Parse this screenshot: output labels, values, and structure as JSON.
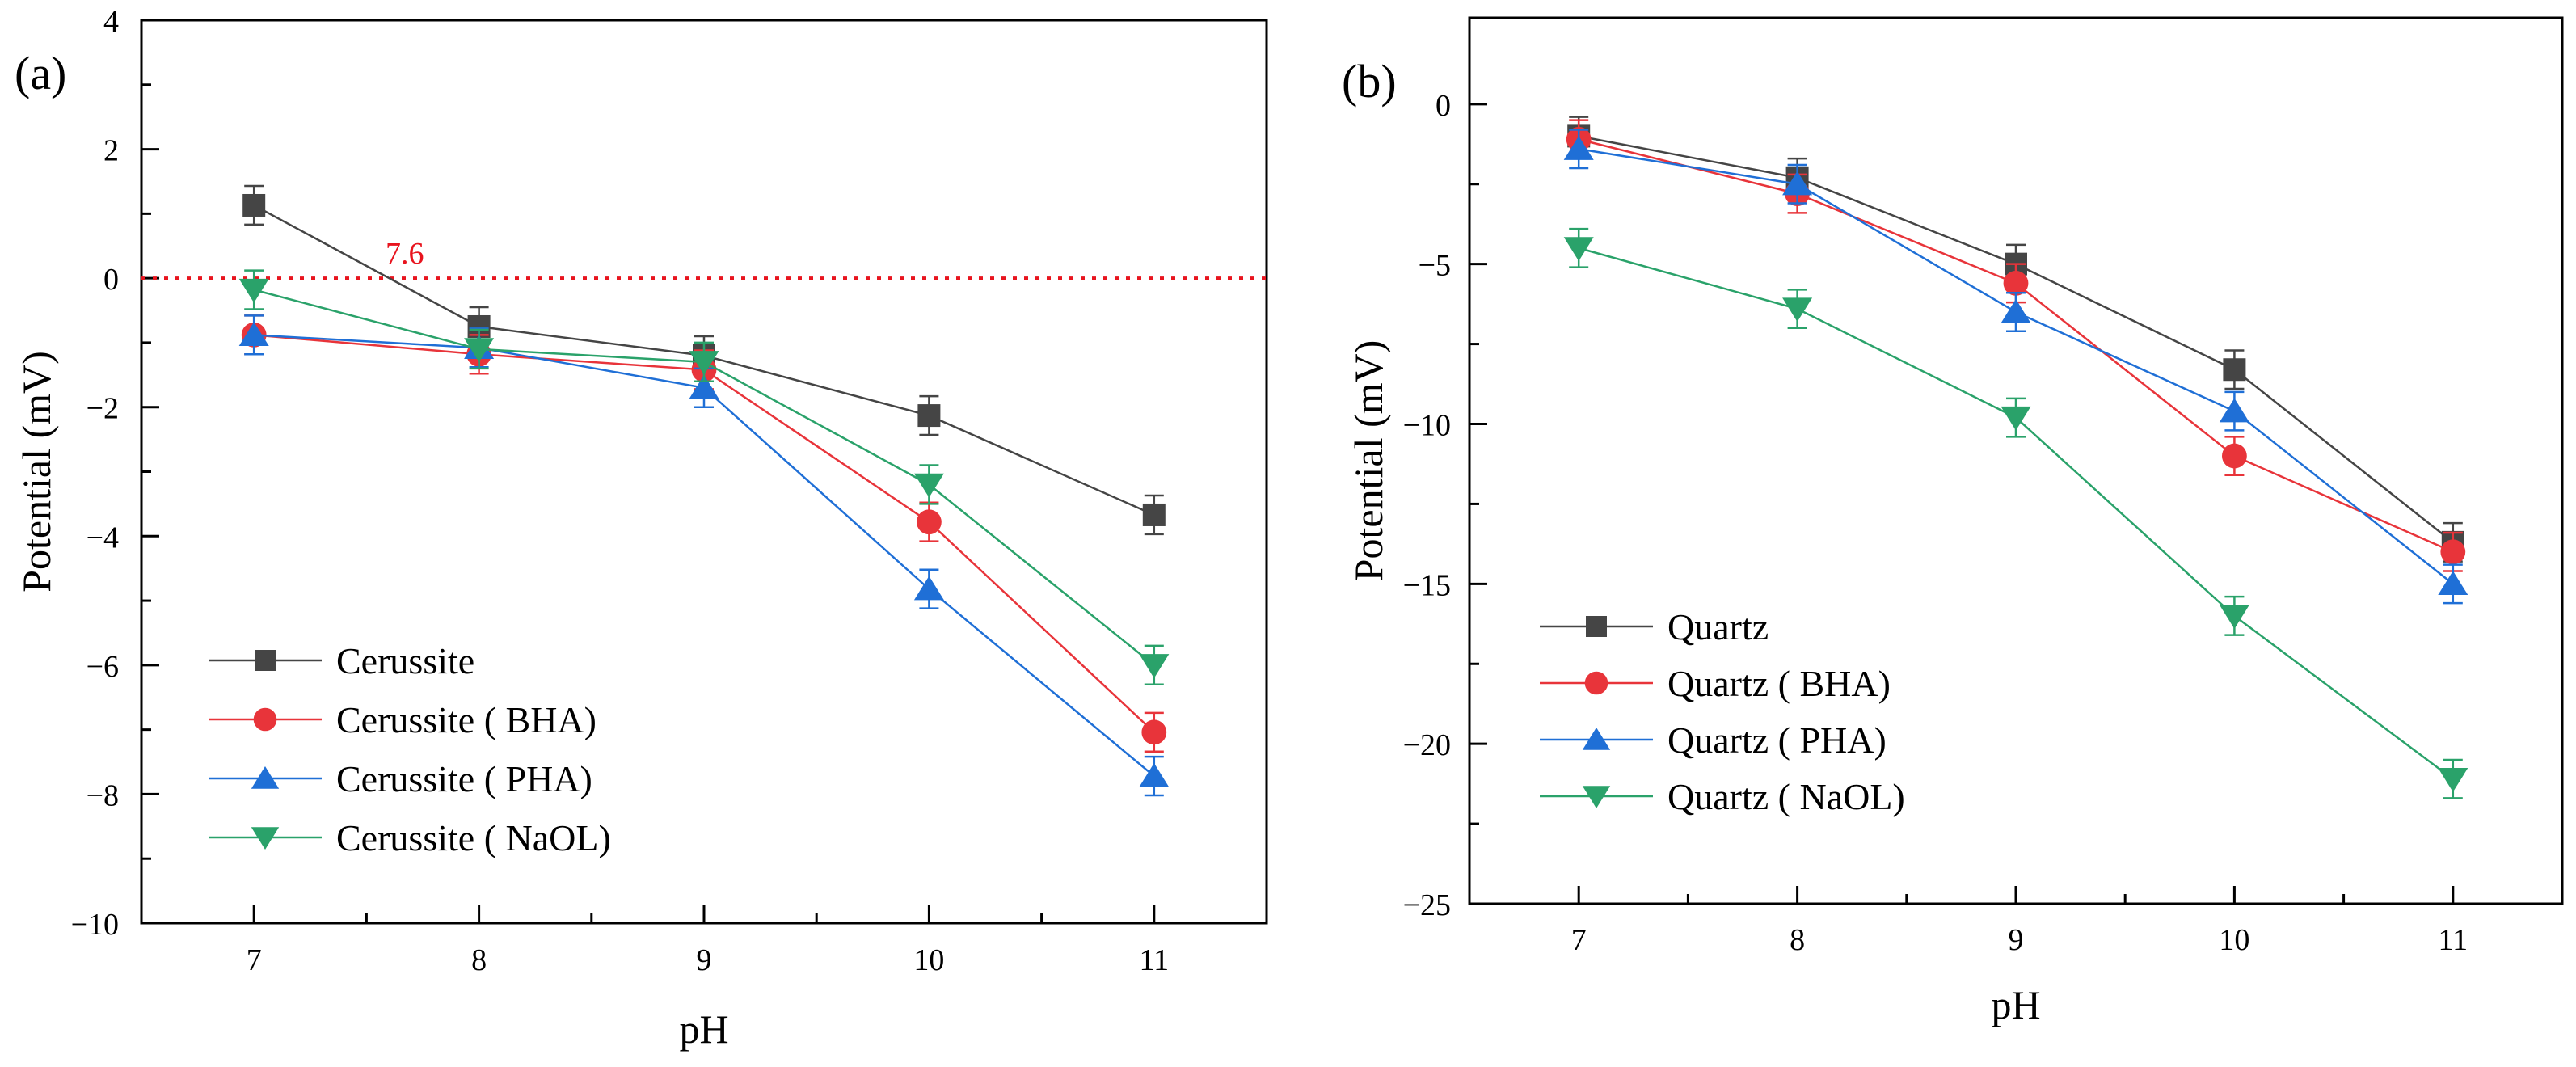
{
  "chart_data": [
    {
      "type": "line",
      "panel_label": "(a)",
      "xlabel": "pH",
      "ylabel": "Potential (mV)",
      "x": [
        7,
        8,
        9,
        10,
        11
      ],
      "xticks": [
        "7",
        "8",
        "9",
        "10",
        "11"
      ],
      "xlim": [
        6.5,
        11.5
      ],
      "ylim": [
        -10,
        4
      ],
      "yticks": [
        4,
        2,
        0,
        -2,
        -4,
        -6,
        -8,
        -10
      ],
      "ytick_labels": [
        "4",
        "2",
        "0",
        "−2",
        "−4",
        "−6",
        "−8",
        "−10"
      ],
      "reference_line": {
        "y": 0,
        "label": "7.6",
        "color": "#e8141e"
      },
      "legend_position": "lower-left",
      "series": [
        {
          "name": "Cerussite",
          "marker": "square",
          "color": "#454545",
          "values": [
            1.13,
            -0.75,
            -1.2,
            -2.13,
            -3.67
          ],
          "errors": [
            0.3,
            0.3,
            0.3,
            0.3,
            0.3
          ]
        },
        {
          "name": "Cerussite ( BHA)",
          "marker": "circle",
          "color": "#e8343a",
          "values": [
            -0.88,
            -1.18,
            -1.42,
            -3.78,
            -7.04
          ],
          "errors": [
            0.3,
            0.3,
            0.3,
            0.3,
            0.3
          ]
        },
        {
          "name": "Cerussite ( PHA)",
          "marker": "triangle-up",
          "color": "#1f6fd6",
          "values": [
            -0.88,
            -1.08,
            -1.7,
            -4.82,
            -7.72
          ],
          "errors": [
            0.3,
            0.3,
            0.3,
            0.3,
            0.3
          ]
        },
        {
          "name": "Cerussite ( NaOL)",
          "marker": "triangle-down",
          "color": "#2aa26a",
          "values": [
            -0.18,
            -1.1,
            -1.3,
            -3.2,
            -6.0
          ],
          "errors": [
            0.3,
            0.3,
            0.3,
            0.3,
            0.3
          ]
        }
      ]
    },
    {
      "type": "line",
      "panel_label": "(b)",
      "xlabel": "pH",
      "ylabel": "Potential (mV)",
      "x": [
        7,
        8,
        9,
        10,
        11
      ],
      "xticks": [
        "7",
        "8",
        "9",
        "10",
        "11"
      ],
      "xlim": [
        6.5,
        11.5
      ],
      "ylim": [
        -25,
        2.7
      ],
      "yticks": [
        0,
        -5,
        -10,
        -15,
        -20,
        -25
      ],
      "ytick_labels": [
        "0",
        "−5",
        "−10",
        "−15",
        "−20",
        "−25"
      ],
      "legend_position": "lower-left",
      "series": [
        {
          "name": "Quartz",
          "marker": "square",
          "color": "#454545",
          "values": [
            -1.0,
            -2.3,
            -5.0,
            -8.3,
            -13.7
          ],
          "errors": [
            0.6,
            0.6,
            0.6,
            0.6,
            0.6
          ]
        },
        {
          "name": "Quartz ( BHA)",
          "marker": "circle",
          "color": "#e8343a",
          "values": [
            -1.1,
            -2.8,
            -5.6,
            -11.0,
            -14.0
          ],
          "errors": [
            0.6,
            0.6,
            0.6,
            0.6,
            0.6
          ]
        },
        {
          "name": "Quartz ( PHA)",
          "marker": "triangle-up",
          "color": "#1f6fd6",
          "values": [
            -1.4,
            -2.5,
            -6.5,
            -9.6,
            -15.0
          ],
          "errors": [
            0.6,
            0.6,
            0.6,
            0.6,
            0.6
          ]
        },
        {
          "name": "Quartz ( NaOL)",
          "marker": "triangle-down",
          "color": "#2aa26a",
          "values": [
            -4.5,
            -6.4,
            -9.8,
            -16.0,
            -21.1
          ],
          "errors": [
            0.6,
            0.6,
            0.6,
            0.6,
            0.6
          ]
        }
      ]
    }
  ]
}
